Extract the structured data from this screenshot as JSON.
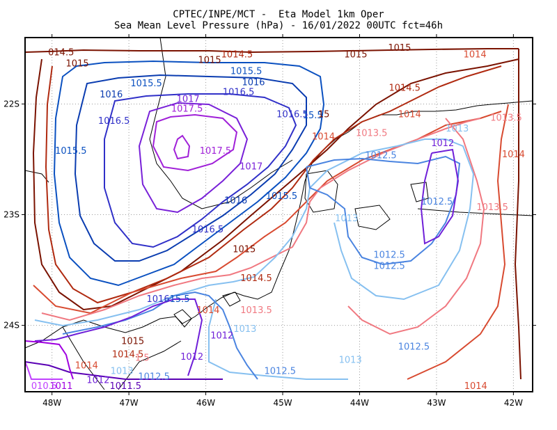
{
  "chart_data": {
    "type": "contour",
    "title": "CPTEC/INPE/MCT -  Eta Model 1km Oper",
    "subtitle": "Sea Mean Level Pressure (hPa) - 16/01/2022 00UTC fct=46h",
    "x_ticks": [
      "48W",
      "47W",
      "46W",
      "45W",
      "44W",
      "43W",
      "42W"
    ],
    "x_tick_values": [
      -48,
      -47,
      -46,
      -45,
      -44,
      -43,
      -42
    ],
    "y_ticks": [
      "22S",
      "23S",
      "24S"
    ],
    "y_tick_values": [
      -22,
      -23,
      -24
    ],
    "xlim": [
      -48.35,
      -41.75
    ],
    "ylim": [
      -24.6,
      -21.4
    ],
    "grid": true,
    "levels": [
      {
        "label": "1010.5",
        "color": "#c040ff"
      },
      {
        "label": "1011",
        "color": "#a000e0"
      },
      {
        "label": "1011.5",
        "color": "#5a00b4"
      },
      {
        "label": "1012",
        "color": "#6f1fd8"
      },
      {
        "label": "1012.5",
        "color": "#4a84e0"
      },
      {
        "label": "1013",
        "color": "#86c0f0"
      },
      {
        "label": "1013.5",
        "color": "#f07880"
      },
      {
        "label": "1014",
        "color": "#d84a30"
      },
      {
        "label": "1014.5",
        "color": "#b02a10"
      },
      {
        "label": "1015",
        "color": "#7a1200"
      },
      {
        "label": "1015.5",
        "color": "#0a50c0"
      },
      {
        "label": "1016",
        "color": "#0a3cb0"
      },
      {
        "label": "1016.5",
        "color": "#3030c8"
      },
      {
        "label": "1017",
        "color": "#7820d8"
      },
      {
        "label": "1017.5",
        "color": "#a020d8"
      }
    ],
    "contour_labels": [
      {
        "text": "014.5",
        "lon": -48.05,
        "lat": -21.56,
        "color": "#7a1200"
      },
      {
        "text": "1015",
        "lon": -47.82,
        "lat": -21.66,
        "color": "#7a1200"
      },
      {
        "text": "1014.5",
        "lon": -45.8,
        "lat": -21.58,
        "color": "#b02a10"
      },
      {
        "text": "1015",
        "lon": -46.1,
        "lat": -21.63,
        "color": "#7a1200"
      },
      {
        "text": "1015",
        "lon": -44.2,
        "lat": -21.58,
        "color": "#7a1200"
      },
      {
        "text": "1015",
        "lon": -43.63,
        "lat": -21.52,
        "color": "#7a1200"
      },
      {
        "text": "1014",
        "lon": -42.65,
        "lat": -21.58,
        "color": "#d84a30"
      },
      {
        "text": "1015.5",
        "lon": -45.68,
        "lat": -21.73,
        "color": "#0a50c0"
      },
      {
        "text": "1015.5",
        "lon": -46.98,
        "lat": -21.84,
        "color": "#0a50c0"
      },
      {
        "text": "1016",
        "lon": -45.53,
        "lat": -21.83,
        "color": "#0a3cb0"
      },
      {
        "text": "1016",
        "lon": -47.38,
        "lat": -21.94,
        "color": "#0a3cb0"
      },
      {
        "text": "1016.5",
        "lon": -45.78,
        "lat": -21.92,
        "color": "#3030c8"
      },
      {
        "text": "1014.5",
        "lon": -43.62,
        "lat": -21.88,
        "color": "#b02a10"
      },
      {
        "text": "1017",
        "lon": -46.38,
        "lat": -21.98,
        "color": "#7820d8"
      },
      {
        "text": "1017.5",
        "lon": -46.45,
        "lat": -22.07,
        "color": "#a020d8"
      },
      {
        "text": "1016.5",
        "lon": -45.08,
        "lat": -22.12,
        "color": "#3030c8"
      },
      {
        "text": "15.5",
        "lon": -44.74,
        "lat": -22.13,
        "color": "#0a50c0"
      },
      {
        "text": "15",
        "lon": -44.54,
        "lat": -22.12,
        "color": "#7a1200"
      },
      {
        "text": "1014",
        "lon": -43.5,
        "lat": -22.12,
        "color": "#d84a30"
      },
      {
        "text": "1013.5",
        "lon": -42.3,
        "lat": -22.15,
        "color": "#f07880"
      },
      {
        "text": "1016.5",
        "lon": -47.4,
        "lat": -22.18,
        "color": "#3030c8"
      },
      {
        "text": "1013",
        "lon": -42.88,
        "lat": -22.25,
        "color": "#86c0f0"
      },
      {
        "text": "1013.5",
        "lon": -44.05,
        "lat": -22.29,
        "color": "#f07880"
      },
      {
        "text": "1014",
        "lon": -44.62,
        "lat": -22.32,
        "color": "#d84a30"
      },
      {
        "text": "1012",
        "lon": -43.07,
        "lat": -22.38,
        "color": "#6f1fd8"
      },
      {
        "text": "1014",
        "lon": -42.15,
        "lat": -22.48,
        "color": "#d84a30"
      },
      {
        "text": "1017.5",
        "lon": -46.08,
        "lat": -22.45,
        "color": "#a020d8"
      },
      {
        "text": "1012.5",
        "lon": -43.93,
        "lat": -22.49,
        "color": "#4a84e0"
      },
      {
        "text": "1015.5",
        "lon": -47.96,
        "lat": -22.45,
        "color": "#0a50c0"
      },
      {
        "text": "1017",
        "lon": -45.56,
        "lat": -22.59,
        "color": "#7820d8"
      },
      {
        "text": "1015.5",
        "lon": -45.22,
        "lat": -22.86,
        "color": "#0a50c0"
      },
      {
        "text": "1016",
        "lon": -45.76,
        "lat": -22.9,
        "color": "#0a3cb0"
      },
      {
        "text": "1012.5",
        "lon": -43.2,
        "lat": -22.91,
        "color": "#4a84e0"
      },
      {
        "text": "1013.5",
        "lon": -42.48,
        "lat": -22.96,
        "color": "#f07880"
      },
      {
        "text": "1013",
        "lon": -44.32,
        "lat": -23.06,
        "color": "#86c0f0"
      },
      {
        "text": "1016.5",
        "lon": -46.18,
        "lat": -23.16,
        "color": "#3030c8"
      },
      {
        "text": "1015",
        "lon": -45.65,
        "lat": -23.34,
        "color": "#7a1200"
      },
      {
        "text": "1012.5",
        "lon": -43.82,
        "lat": -23.39,
        "color": "#4a84e0"
      },
      {
        "text": "1012.5",
        "lon": -43.82,
        "lat": -23.49,
        "color": "#4a84e0"
      },
      {
        "text": "1014.5",
        "lon": -45.55,
        "lat": -23.6,
        "color": "#b02a10"
      },
      {
        "text": "1016",
        "lon": -46.77,
        "lat": -23.79,
        "color": "#3030c8"
      },
      {
        "text": "15.5",
        "lon": -46.47,
        "lat": -23.79,
        "color": "#0a50c0"
      },
      {
        "text": "1014",
        "lon": -46.12,
        "lat": -23.89,
        "color": "#d84a30"
      },
      {
        "text": "1013.5",
        "lon": -45.55,
        "lat": -23.89,
        "color": "#f07880"
      },
      {
        "text": "1013",
        "lon": -45.64,
        "lat": -24.06,
        "color": "#86c0f0"
      },
      {
        "text": "1012",
        "lon": -45.94,
        "lat": -24.12,
        "color": "#6f1fd8"
      },
      {
        "text": "1015",
        "lon": -47.1,
        "lat": -24.17,
        "color": "#7a1200"
      },
      {
        "text": "1014.5",
        "lon": -47.22,
        "lat": -24.29,
        "color": "#b02a10"
      },
      {
        "text": "1.5",
        "lon": -46.92,
        "lat": -24.32,
        "color": "#f07880"
      },
      {
        "text": "1012",
        "lon": -46.33,
        "lat": -24.31,
        "color": "#6f1fd8"
      },
      {
        "text": "1012.5",
        "lon": -43.5,
        "lat": -24.22,
        "color": "#4a84e0"
      },
      {
        "text": "1013",
        "lon": -44.27,
        "lat": -24.34,
        "color": "#86c0f0"
      },
      {
        "text": "1014",
        "lon": -47.7,
        "lat": -24.39,
        "color": "#d84a30"
      },
      {
        "text": "1012.5",
        "lon": -45.24,
        "lat": -24.44,
        "color": "#4a84e0"
      },
      {
        "text": "1013",
        "lon": -47.24,
        "lat": -24.44,
        "color": "#86c0f0"
      },
      {
        "text": "1012.5",
        "lon": -46.88,
        "lat": -24.49,
        "color": "#4a84e0"
      },
      {
        "text": "1012",
        "lon": -47.55,
        "lat": -24.52,
        "color": "#6f1fd8"
      },
      {
        "text": "1011",
        "lon": -48.03,
        "lat": -24.68,
        "color": "#a000e0"
      },
      {
        "text": "1011.5",
        "lon": -47.25,
        "lat": -24.89,
        "color": "#5a00b4"
      },
      {
        "text": "010.5",
        "lon": -48.27,
        "lat": -25.03,
        "color": "#c040ff"
      },
      {
        "text": "1014",
        "lon": -42.64,
        "lat": -24.96,
        "color": "#d84a30"
      }
    ]
  }
}
